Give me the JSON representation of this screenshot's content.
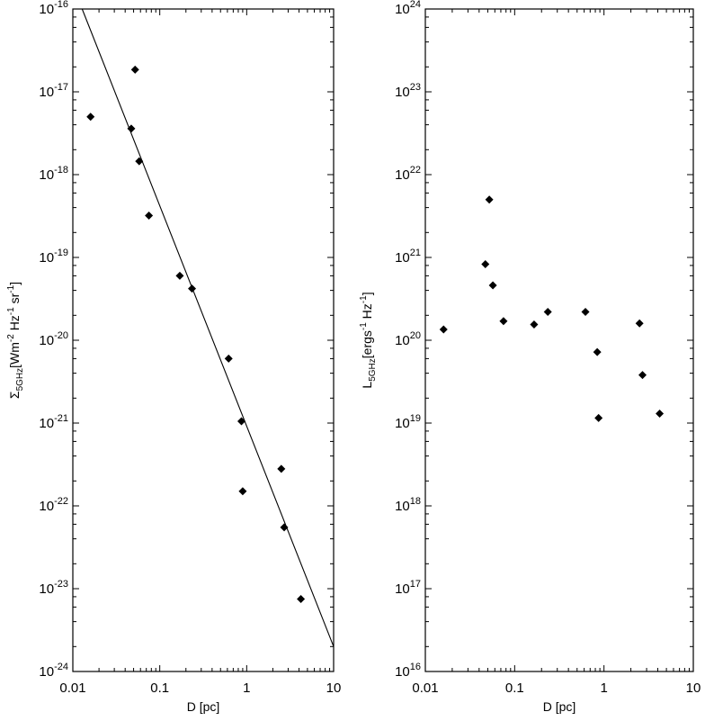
{
  "chart_data": [
    {
      "type": "scatter",
      "title": "",
      "xlabel": "D [pc]",
      "ylabel": "Σ5GHz[Wm-2 Hz-1 sr-1]",
      "x_scale": "log",
      "y_scale": "log",
      "xlim": [
        0.01,
        10
      ],
      "ylim": [
        1e-24,
        1e-16
      ],
      "grid": false,
      "x_tick_labels": [
        "0.01",
        "0.1",
        "1",
        "10"
      ],
      "y_tick_labels": [
        {
          "base": "10",
          "exp": "-24"
        },
        {
          "base": "10",
          "exp": "-23"
        },
        {
          "base": "10",
          "exp": "-22"
        },
        {
          "base": "10",
          "exp": "-21"
        },
        {
          "base": "10",
          "exp": "-20"
        },
        {
          "base": "10",
          "exp": "-19"
        },
        {
          "base": "10",
          "exp": "-18"
        },
        {
          "base": "10",
          "exp": "-17"
        },
        {
          "base": "10",
          "exp": "-16"
        }
      ],
      "points": [
        {
          "x": 0.016,
          "y": 5e-18
        },
        {
          "x": 0.047,
          "y": 3.6e-18
        },
        {
          "x": 0.052,
          "y": 1.85e-17
        },
        {
          "x": 0.058,
          "y": 1.45e-18
        },
        {
          "x": 0.075,
          "y": 3.2e-19
        },
        {
          "x": 0.17,
          "y": 6e-20
        },
        {
          "x": 0.235,
          "y": 4.2e-20
        },
        {
          "x": 0.62,
          "y": 6e-21
        },
        {
          "x": 0.87,
          "y": 1.05e-21
        },
        {
          "x": 0.9,
          "y": 1.5e-22
        },
        {
          "x": 2.5,
          "y": 2.8e-22
        },
        {
          "x": 2.7,
          "y": 5.5e-23
        },
        {
          "x": 4.2,
          "y": 7.5e-24
        }
      ],
      "fit_line": [
        {
          "x": 0.0128,
          "y": 1e-16
        },
        {
          "x": 10,
          "y": 2e-24
        }
      ]
    },
    {
      "type": "scatter",
      "title": "",
      "xlabel": "D [pc]",
      "ylabel": "L5GHz[ergs-1 Hz-1]",
      "x_scale": "log",
      "y_scale": "log",
      "xlim": [
        0.01,
        10
      ],
      "ylim": [
        1e+16,
        1e+24
      ],
      "grid": false,
      "x_tick_labels": [
        "0.01",
        "0.1",
        "1",
        "10"
      ],
      "y_tick_labels": [
        {
          "base": "10",
          "exp": "16"
        },
        {
          "base": "10",
          "exp": "17"
        },
        {
          "base": "10",
          "exp": "18"
        },
        {
          "base": "10",
          "exp": "19"
        },
        {
          "base": "10",
          "exp": "20"
        },
        {
          "base": "10",
          "exp": "21"
        },
        {
          "base": "10",
          "exp": "22"
        },
        {
          "base": "10",
          "exp": "23"
        },
        {
          "base": "10",
          "exp": "24"
        }
      ],
      "points": [
        {
          "x": 0.016,
          "y": 1.35e+20
        },
        {
          "x": 0.047,
          "y": 8.3e+20
        },
        {
          "x": 0.052,
          "y": 5e+21
        },
        {
          "x": 0.057,
          "y": 4.6e+20
        },
        {
          "x": 0.075,
          "y": 1.7e+20
        },
        {
          "x": 0.165,
          "y": 1.55e+20
        },
        {
          "x": 0.235,
          "y": 2.2e+20
        },
        {
          "x": 0.62,
          "y": 2.2e+20
        },
        {
          "x": 0.84,
          "y": 7.2e+19
        },
        {
          "x": 0.87,
          "y": 1.15e+19
        },
        {
          "x": 2.5,
          "y": 1.6e+20
        },
        {
          "x": 2.7,
          "y": 3.8e+19
        },
        {
          "x": 4.2,
          "y": 1.3e+19
        }
      ]
    }
  ]
}
